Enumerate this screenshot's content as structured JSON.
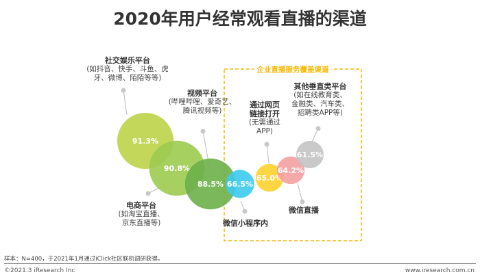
{
  "title": "2020年用户经常观看直播的渠道",
  "box_title": "企业直播服务覆盖渠道",
  "chart_data": {
    "type": "bubble",
    "title": "2020年用户经常观看直播的渠道",
    "categories": [
      "社交娱乐平台",
      "电商平台",
      "视频平台",
      "微信小程序内",
      "通过网页链接打开",
      "微信直播",
      "其他垂直类平台"
    ],
    "values": [
      91.3,
      90.8,
      88.5,
      66.5,
      65.0,
      64.2,
      61.5
    ],
    "value_labels": [
      "91.3%",
      "90.8%",
      "88.5%",
      "66.5%",
      "65.0%",
      "64.2%",
      "61.5%"
    ],
    "colors": [
      "#bcd448",
      "#9ccc50",
      "#6db04a",
      "#3ccbee",
      "#fdd22c",
      "#f4a0a0",
      "#c3c3c3"
    ]
  },
  "labels": [
    {
      "name": "社交娱乐平台",
      "desc": [
        "(如抖音、快手、斗鱼、虎",
        "牙、微博、陌陌等等)"
      ]
    },
    {
      "name": "电商平台",
      "desc": [
        "(如淘宝直播、",
        "京东直播等)"
      ]
    },
    {
      "name": "视频平台",
      "desc": [
        "(哔哩哔哩、爱奇艺、",
        "腾讯视频等)"
      ]
    },
    {
      "name": "微信小程序内",
      "desc": []
    },
    {
      "name": "通过网页\n链接打开",
      "name_lines": [
        "通过网页",
        "链接打开"
      ],
      "desc": [
        "(无需通过",
        "APP)"
      ]
    },
    {
      "name": "微信直播",
      "desc": []
    },
    {
      "name": "其他垂直类平台",
      "desc": [
        "(如在线教育类、",
        "金融类、汽车类、",
        "招聘类APP等)"
      ]
    }
  ],
  "note": "样本：N=400，于2021年1月通过iClick社区联机调研获得。",
  "copyright": "©2021.3 iResearch Inc",
  "url": "www.iresearch.com.cn"
}
